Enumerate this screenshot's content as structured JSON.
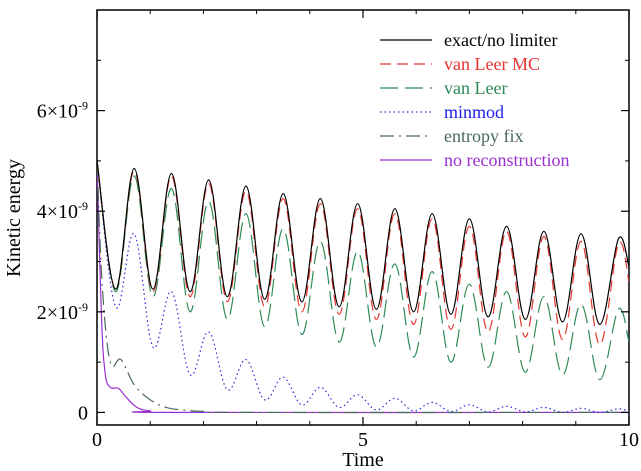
{
  "chart_data": {
    "type": "line",
    "title": "",
    "xlabel": "Time",
    "ylabel": "Kinetic energy",
    "xlim": [
      0,
      10
    ],
    "ylim": [
      -2.5e-10,
      8e-09
    ],
    "grid": false,
    "legend_position": "top-right",
    "x_ticks": [
      {
        "value": 0,
        "label": "0"
      },
      {
        "value": 5,
        "label": "5"
      },
      {
        "value": 10,
        "label": "10"
      }
    ],
    "y_ticks": [
      {
        "value": 0,
        "mant": "0",
        "exp": ""
      },
      {
        "value": 2e-09,
        "mant": "2×10",
        "exp": "-9"
      },
      {
        "value": 4e-09,
        "mant": "4×10",
        "exp": "-9"
      },
      {
        "value": 6e-09,
        "mant": "6×10",
        "exp": "-9"
      }
    ],
    "series": [
      {
        "name": "exact/no limiter",
        "color": "#000000",
        "dash": "solid",
        "points": [
          [
            0,
            5e-09
          ],
          [
            0.35,
            2.45e-09
          ],
          [
            0.7,
            4.85e-09
          ],
          [
            1.05,
            2.45e-09
          ],
          [
            1.4,
            4.75e-09
          ],
          [
            1.75,
            2.4e-09
          ],
          [
            2.1,
            4.62e-09
          ],
          [
            2.45,
            2.3e-09
          ],
          [
            2.8,
            4.5e-09
          ],
          [
            3.15,
            2.25e-09
          ],
          [
            3.5,
            4.35e-09
          ],
          [
            3.85,
            2.2e-09
          ],
          [
            4.2,
            4.25e-09
          ],
          [
            4.55,
            2.1e-09
          ],
          [
            4.9,
            4.15e-09
          ],
          [
            5.25,
            2.05e-09
          ],
          [
            5.6,
            4.05e-09
          ],
          [
            5.95,
            2e-09
          ],
          [
            6.3,
            3.95e-09
          ],
          [
            6.65,
            1.95e-09
          ],
          [
            7.0,
            3.85e-09
          ],
          [
            7.35,
            1.9e-09
          ],
          [
            7.7,
            3.7e-09
          ],
          [
            8.05,
            1.85e-09
          ],
          [
            8.4,
            3.6e-09
          ],
          [
            8.75,
            1.8e-09
          ],
          [
            9.1,
            3.55e-09
          ],
          [
            9.45,
            1.75e-09
          ],
          [
            9.8,
            3.45e-09
          ],
          [
            10.0,
            2.9e-09
          ]
        ]
      },
      {
        "name": "van Leer MC",
        "color": "#e8352f",
        "dash": "long",
        "points": [
          [
            0,
            5e-09
          ],
          [
            0.35,
            2.45e-09
          ],
          [
            0.7,
            4.8e-09
          ],
          [
            1.05,
            2.4e-09
          ],
          [
            1.4,
            4.7e-09
          ],
          [
            1.75,
            2.3e-09
          ],
          [
            2.1,
            4.55e-09
          ],
          [
            2.45,
            2.2e-09
          ],
          [
            2.8,
            4.4e-09
          ],
          [
            3.15,
            2.1e-09
          ],
          [
            3.5,
            4.25e-09
          ],
          [
            3.85,
            2e-09
          ],
          [
            4.2,
            4.15e-09
          ],
          [
            4.55,
            1.95e-09
          ],
          [
            4.9,
            4.05e-09
          ],
          [
            5.25,
            1.85e-09
          ],
          [
            5.6,
            3.95e-09
          ],
          [
            5.95,
            1.75e-09
          ],
          [
            6.3,
            3.85e-09
          ],
          [
            6.65,
            1.65e-09
          ],
          [
            7.0,
            3.7e-09
          ],
          [
            7.35,
            1.6e-09
          ],
          [
            7.7,
            3.6e-09
          ],
          [
            8.05,
            1.5e-09
          ],
          [
            8.4,
            3.5e-09
          ],
          [
            8.75,
            1.45e-09
          ],
          [
            9.1,
            3.4e-09
          ],
          [
            9.45,
            1.35e-09
          ],
          [
            9.8,
            3.35e-09
          ],
          [
            10.0,
            2.6e-09
          ]
        ]
      },
      {
        "name": "van Leer",
        "color": "#2e8b57",
        "dash": "longer",
        "points": [
          [
            0,
            5e-09
          ],
          [
            0.35,
            2.4e-09
          ],
          [
            0.7,
            4.7e-09
          ],
          [
            1.05,
            2.3e-09
          ],
          [
            1.4,
            4.45e-09
          ],
          [
            1.75,
            2e-09
          ],
          [
            2.1,
            4.2e-09
          ],
          [
            2.45,
            1.85e-09
          ],
          [
            2.8,
            3.95e-09
          ],
          [
            3.15,
            1.7e-09
          ],
          [
            3.5,
            3.65e-09
          ],
          [
            3.85,
            1.55e-09
          ],
          [
            4.2,
            3.4e-09
          ],
          [
            4.55,
            1.4e-09
          ],
          [
            4.9,
            3.2e-09
          ],
          [
            5.25,
            1.3e-09
          ],
          [
            5.6,
            2.95e-09
          ],
          [
            5.95,
            1.1e-09
          ],
          [
            6.3,
            2.8e-09
          ],
          [
            6.65,
            1e-09
          ],
          [
            7.0,
            2.55e-09
          ],
          [
            7.35,
            9e-10
          ],
          [
            7.7,
            2.4e-09
          ],
          [
            8.05,
            8e-10
          ],
          [
            8.4,
            2.3e-09
          ],
          [
            8.75,
            7.5e-10
          ],
          [
            9.1,
            2.15e-09
          ],
          [
            9.45,
            6.5e-10
          ],
          [
            9.8,
            2.05e-09
          ],
          [
            10.0,
            1.4e-09
          ]
        ]
      },
      {
        "name": "minmod",
        "color": "#2b2bd6",
        "dash": "dot",
        "points": [
          [
            0,
            5e-09
          ],
          [
            0.35,
            2.1e-09
          ],
          [
            0.7,
            3.55e-09
          ],
          [
            1.05,
            1.3e-09
          ],
          [
            1.4,
            2.4e-09
          ],
          [
            1.75,
            7.5e-10
          ],
          [
            2.1,
            1.6e-09
          ],
          [
            2.45,
            4.5e-10
          ],
          [
            2.8,
            1.05e-09
          ],
          [
            3.15,
            2.5e-10
          ],
          [
            3.5,
            7e-10
          ],
          [
            3.85,
            1.5e-10
          ],
          [
            4.2,
            5e-10
          ],
          [
            4.55,
            1e-10
          ],
          [
            4.9,
            3.5e-10
          ],
          [
            5.25,
            5e-11
          ],
          [
            5.6,
            2.8e-10
          ],
          [
            5.95,
            3e-11
          ],
          [
            6.3,
            2e-10
          ],
          [
            6.65,
            2e-11
          ],
          [
            7.0,
            1.5e-10
          ],
          [
            7.35,
            1e-11
          ],
          [
            7.7,
            1.2e-10
          ],
          [
            8.05,
            1e-11
          ],
          [
            8.4,
            1e-10
          ],
          [
            8.75,
            0.0
          ],
          [
            9.1,
            8e-11
          ],
          [
            9.45,
            0.0
          ],
          [
            9.8,
            7e-11
          ],
          [
            10.0,
            2e-11
          ]
        ]
      },
      {
        "name": "entropy fix",
        "color": "#4a6a5a",
        "dash": "dashdot",
        "points": [
          [
            0,
            5e-09
          ],
          [
            0.1,
            2.5e-09
          ],
          [
            0.25,
            1e-09
          ],
          [
            0.45,
            1.05e-09
          ],
          [
            0.7,
            5.5e-10
          ],
          [
            1.0,
            2.5e-10
          ],
          [
            1.3,
            1e-10
          ],
          [
            1.6,
            5e-11
          ],
          [
            2.0,
            2e-11
          ],
          [
            3.0,
            0.0
          ],
          [
            10.0,
            0.0
          ]
        ]
      },
      {
        "name": "no reconstruction",
        "color": "#9b30d0",
        "dash": "solid",
        "points": [
          [
            0,
            5e-09
          ],
          [
            0.08,
            2e-09
          ],
          [
            0.15,
            8e-10
          ],
          [
            0.25,
            5e-10
          ],
          [
            0.4,
            4.8e-10
          ],
          [
            0.55,
            3e-10
          ],
          [
            0.75,
            1e-10
          ],
          [
            1.0,
            3e-11
          ],
          [
            1.5,
            0.0
          ],
          [
            10.0,
            0.0
          ]
        ]
      }
    ]
  }
}
